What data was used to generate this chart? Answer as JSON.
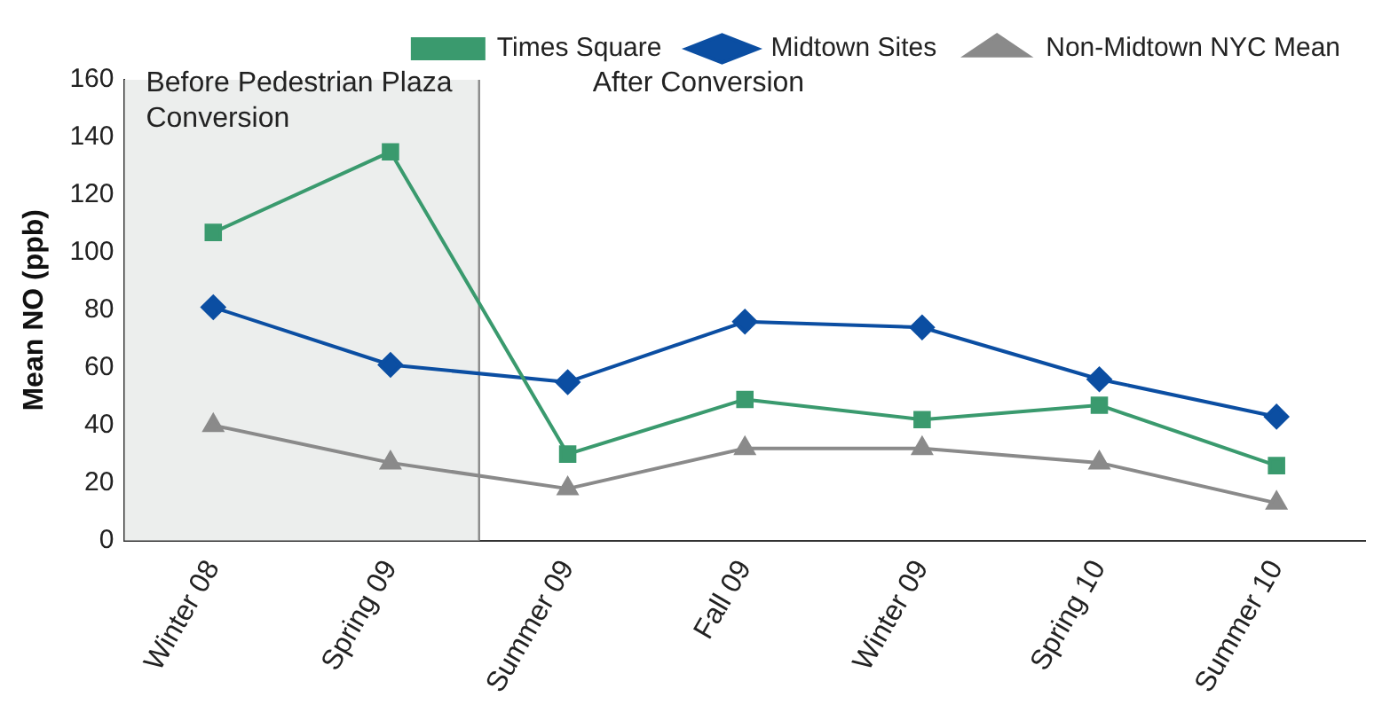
{
  "chart_data": {
    "type": "line",
    "ylabel": "Mean NO (ppb)",
    "categories": [
      "Winter 08",
      "Spring 09",
      "Summer 09",
      "Fall 09",
      "Winter 09",
      "Spring 10",
      "Summer 10"
    ],
    "series": [
      {
        "name": "Times Square",
        "color": "#3a9a6e",
        "marker": "square",
        "values": [
          107,
          135,
          30,
          49,
          42,
          47,
          26
        ]
      },
      {
        "name": "Midtown Sites",
        "color": "#0b4ea2",
        "marker": "diamond",
        "values": [
          81,
          61,
          55,
          76,
          74,
          56,
          43
        ]
      },
      {
        "name": "Non-Midtown NYC Mean",
        "color": "#8a8a8a",
        "marker": "triangle",
        "values": [
          40,
          27,
          18,
          32,
          32,
          27,
          13
        ]
      }
    ],
    "ylim": [
      0,
      160
    ],
    "yticks": [
      0,
      20,
      40,
      60,
      80,
      100,
      120,
      140,
      160
    ],
    "grid": false,
    "legend": "top right",
    "bands": [
      {
        "axis": "x",
        "from": "Winter 08",
        "to": "Spring 09",
        "label": "Before Pedestrian Plaza Conversion",
        "color": "#eceeed"
      }
    ],
    "annotations": [
      "After Conversion"
    ]
  }
}
